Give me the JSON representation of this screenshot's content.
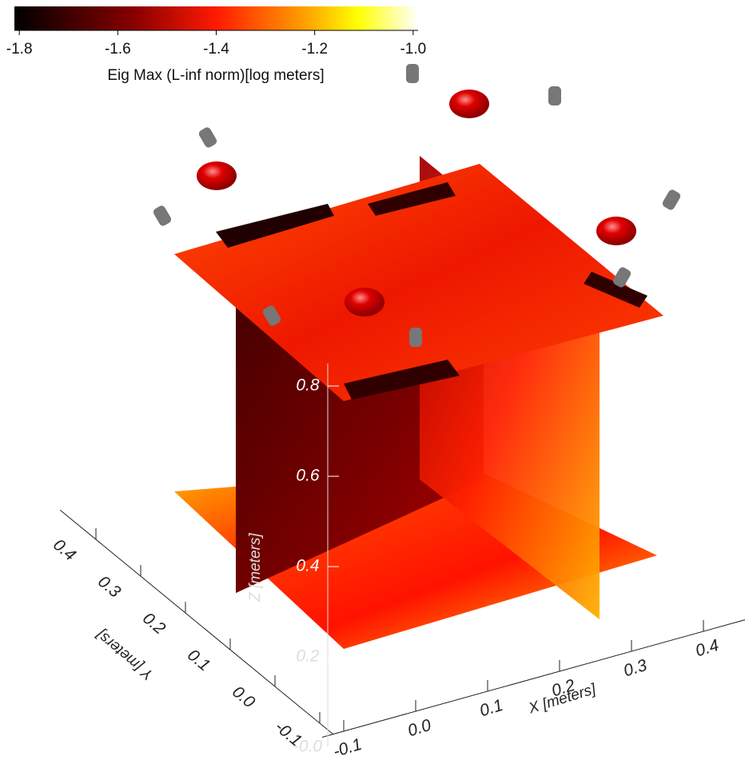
{
  "chart_data": {
    "type": "volume-slices",
    "colorbar": {
      "label": "Eig Max (L-inf norm)[log meters]",
      "lim": [
        -1.81,
        -0.99
      ],
      "ticks": [
        -1.8,
        -1.6,
        -1.4,
        -1.2,
        {
          "value": -1,
          "label": "-1.0"
        }
      ]
    },
    "x_axis": {
      "label": "X [meters]",
      "ticks": [
        -0.1,
        {
          "value": 0,
          "label": "0.0"
        },
        0.1,
        0.2,
        0.3,
        0.4
      ]
    },
    "y_axis": {
      "label": "Y [meters]",
      "ticks": [
        -0.1,
        {
          "value": 0,
          "label": "0.0"
        },
        0.1,
        0.2,
        0.3,
        0.4
      ]
    },
    "z_axis": {
      "label": "Z [meters]",
      "ticks": [
        {
          "value": 0,
          "label": "-0.0"
        },
        0.2,
        0.4,
        0.6,
        0.8
      ]
    }
  }
}
